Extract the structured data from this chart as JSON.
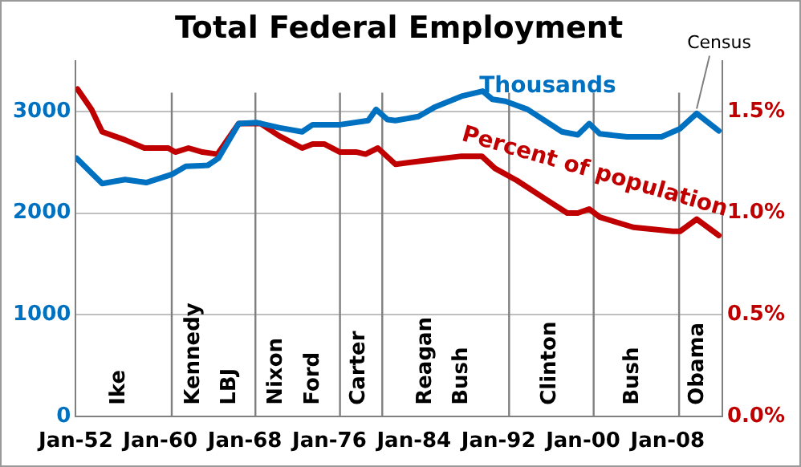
{
  "chart_data": {
    "type": "line",
    "title": "Total Federal Employment",
    "xlim": [
      "1952-01",
      "2013-03"
    ],
    "xticks": [
      {
        "value": "1952-01",
        "label": "Jan-52"
      },
      {
        "value": "1960-01",
        "label": "Jan-60"
      },
      {
        "value": "1968-01",
        "label": "Jan-68"
      },
      {
        "value": "1976-01",
        "label": "Jan-76"
      },
      {
        "value": "1984-01",
        "label": "Jan-84"
      },
      {
        "value": "1992-01",
        "label": "Jan-92"
      },
      {
        "value": "2000-01",
        "label": "Jan-00"
      },
      {
        "value": "2008-01",
        "label": "Jan-08"
      }
    ],
    "ylim": [
      0,
      3500
    ],
    "yticks": [
      0,
      1000,
      2000,
      3000
    ],
    "y2lim": [
      0,
      1.75
    ],
    "y2ticks": [
      {
        "value": 0,
        "label": "0.0%"
      },
      {
        "value": 0.5,
        "label": "0.5%"
      },
      {
        "value": 1,
        "label": "1.0%"
      },
      {
        "value": 1.5,
        "label": "1.5%"
      }
    ],
    "grid": "y",
    "legend": false,
    "marker": "none",
    "line_style": "solid",
    "series": [
      {
        "name": "Thousands",
        "color": "#0070c0",
        "x": [
          "1952-02",
          "1954-07",
          "1956-09",
          "1958-09",
          "1961-02",
          "1962-06",
          "1964-07",
          "1965-07",
          "1967-06",
          "1969-03",
          "1971-04",
          "1973-06",
          "1974-06",
          "1977-01",
          "1979-09",
          "1980-06",
          "1981-07",
          "1982-04",
          "1984-06",
          "1985-12",
          "1988-07",
          "1990-07",
          "1991-06",
          "1992-09",
          "1994-10",
          "1998-01",
          "1999-07",
          "2000-08",
          "2001-08",
          "2004-03",
          "2007-06",
          "2009-03",
          "2010-10",
          "2012-11"
        ],
        "values": [
          2540,
          2290,
          2330,
          2300,
          2380,
          2460,
          2470,
          2540,
          2880,
          2890,
          2840,
          2800,
          2870,
          2870,
          2910,
          3020,
          2920,
          2910,
          2950,
          3040,
          3150,
          3200,
          3120,
          3100,
          3020,
          2800,
          2770,
          2880,
          2780,
          2750,
          2750,
          2830,
          2980,
          2810
        ]
      },
      {
        "name": "Percent of population",
        "color": "#c00000",
        "axis": "y2",
        "x": [
          "1952-03",
          "1953-07",
          "1954-07",
          "1956-09",
          "1958-07",
          "1960-10",
          "1961-06",
          "1962-09",
          "1964-01",
          "1965-06",
          "1967-06",
          "1969-07",
          "1971-04",
          "1973-06",
          "1974-06",
          "1975-07",
          "1977-01",
          "1978-08",
          "1979-06",
          "1980-08",
          "1982-04",
          "1985-04",
          "1988-07",
          "1990-06",
          "1991-09",
          "1993-10",
          "1996-06",
          "1998-07",
          "1999-07",
          "2000-08",
          "2001-08",
          "2004-10",
          "2008-07",
          "2009-03",
          "2010-10",
          "2012-11"
        ],
        "values": [
          1.61,
          1.51,
          1.4,
          1.36,
          1.32,
          1.32,
          1.3,
          1.32,
          1.3,
          1.29,
          1.44,
          1.44,
          1.38,
          1.32,
          1.34,
          1.34,
          1.3,
          1.3,
          1.29,
          1.32,
          1.24,
          1.26,
          1.28,
          1.28,
          1.22,
          1.16,
          1.07,
          1.0,
          1.0,
          1.02,
          0.98,
          0.93,
          0.91,
          0.91,
          0.97,
          0.89
        ]
      }
    ],
    "ref_lines": [
      {
        "axis": "x",
        "value": "1961-02",
        "color": "#808080"
      },
      {
        "axis": "x",
        "value": "1969-01",
        "color": "#808080"
      },
      {
        "axis": "x",
        "value": "1977-01",
        "color": "#808080"
      },
      {
        "axis": "x",
        "value": "1981-01",
        "color": "#808080"
      },
      {
        "axis": "x",
        "value": "1993-01",
        "color": "#808080"
      },
      {
        "axis": "x",
        "value": "2001-01",
        "color": "#808080"
      },
      {
        "axis": "x",
        "value": "2009-02",
        "color": "#808080"
      }
    ],
    "annotations": [
      "Ike",
      "Kennedy",
      "LBJ",
      "Nixon",
      "Ford",
      "Carter",
      "Reagan",
      "Bush",
      "Clinton",
      "Bush",
      "Obama",
      {
        "text": "Census",
        "x": "2010-10",
        "y": 2980
      }
    ]
  }
}
